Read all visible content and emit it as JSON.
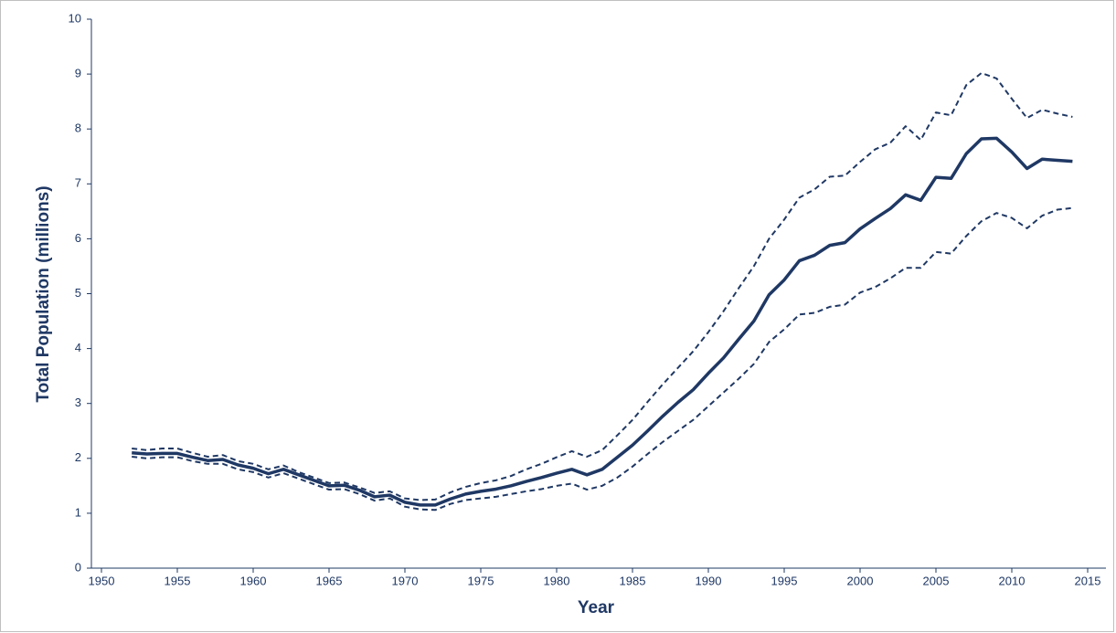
{
  "chart_data": {
    "type": "line",
    "x_label": "Year",
    "y_label": "Total Population (millions)",
    "x": [
      1952,
      1953,
      1954,
      1955,
      1956,
      1957,
      1958,
      1959,
      1960,
      1961,
      1962,
      1963,
      1964,
      1965,
      1966,
      1967,
      1968,
      1969,
      1970,
      1971,
      1972,
      1973,
      1974,
      1975,
      1976,
      1977,
      1978,
      1979,
      1980,
      1981,
      1982,
      1983,
      1984,
      1985,
      1986,
      1987,
      1988,
      1989,
      1990,
      1991,
      1992,
      1993,
      1994,
      1995,
      1996,
      1997,
      1998,
      1999,
      2000,
      2001,
      2002,
      2003,
      2004,
      2005,
      2006,
      2007,
      2008,
      2009,
      2010,
      2011,
      2012,
      2013,
      2014
    ],
    "series": [
      {
        "color": "#1f3864",
        "style": "dashed",
        "values": [
          2.18,
          2.15,
          2.18,
          2.18,
          2.1,
          2.03,
          2.06,
          1.95,
          1.9,
          1.8,
          1.87,
          1.75,
          1.65,
          1.55,
          1.56,
          1.47,
          1.37,
          1.4,
          1.27,
          1.24,
          1.25,
          1.38,
          1.48,
          1.55,
          1.6,
          1.68,
          1.8,
          1.9,
          2.02,
          2.13,
          2.03,
          2.15,
          2.42,
          2.7,
          3.03,
          3.35,
          3.65,
          3.95,
          4.3,
          4.68,
          5.1,
          5.5,
          6.0,
          6.35,
          6.75,
          6.9,
          7.13,
          7.15,
          7.4,
          7.63,
          7.75,
          8.05,
          7.8,
          8.3,
          8.25,
          8.8,
          9.02,
          8.92,
          8.55,
          8.2,
          8.35,
          8.28,
          8.22
        ]
      },
      {
        "color": "#1f3864",
        "style": "solid",
        "values": [
          2.1,
          2.08,
          2.09,
          2.09,
          2.02,
          1.96,
          1.98,
          1.88,
          1.82,
          1.72,
          1.8,
          1.7,
          1.6,
          1.5,
          1.51,
          1.42,
          1.3,
          1.33,
          1.2,
          1.15,
          1.15,
          1.26,
          1.35,
          1.4,
          1.44,
          1.5,
          1.58,
          1.65,
          1.73,
          1.8,
          1.7,
          1.8,
          2.02,
          2.24,
          2.5,
          2.77,
          3.02,
          3.25,
          3.55,
          3.83,
          4.17,
          4.5,
          4.98,
          5.25,
          5.6,
          5.7,
          5.88,
          5.93,
          6.18,
          6.37,
          6.55,
          6.8,
          6.7,
          7.12,
          7.1,
          7.55,
          7.82,
          7.83,
          7.58,
          7.28,
          7.45,
          7.43,
          7.41
        ]
      },
      {
        "color": "#1f3864",
        "style": "dashed",
        "values": [
          2.03,
          2.0,
          2.02,
          2.02,
          1.95,
          1.9,
          1.9,
          1.8,
          1.75,
          1.65,
          1.73,
          1.63,
          1.53,
          1.43,
          1.44,
          1.35,
          1.23,
          1.27,
          1.12,
          1.07,
          1.06,
          1.17,
          1.24,
          1.27,
          1.3,
          1.35,
          1.4,
          1.44,
          1.5,
          1.54,
          1.43,
          1.5,
          1.65,
          1.85,
          2.08,
          2.3,
          2.5,
          2.7,
          2.95,
          3.2,
          3.45,
          3.72,
          4.12,
          4.35,
          4.62,
          4.65,
          4.76,
          4.8,
          5.02,
          5.12,
          5.28,
          5.47,
          5.47,
          5.76,
          5.73,
          6.05,
          6.32,
          6.47,
          6.38,
          6.19,
          6.42,
          6.53,
          6.56
        ]
      }
    ],
    "xlim": [
      1950,
      2015
    ],
    "xticks": [
      1950,
      1955,
      1960,
      1965,
      1970,
      1975,
      1980,
      1985,
      1990,
      1995,
      2000,
      2005,
      2010,
      2015
    ],
    "ylim": [
      0,
      10
    ],
    "yticks": [
      0,
      1,
      2,
      3,
      4,
      5,
      6,
      7,
      8,
      9,
      10
    ]
  }
}
